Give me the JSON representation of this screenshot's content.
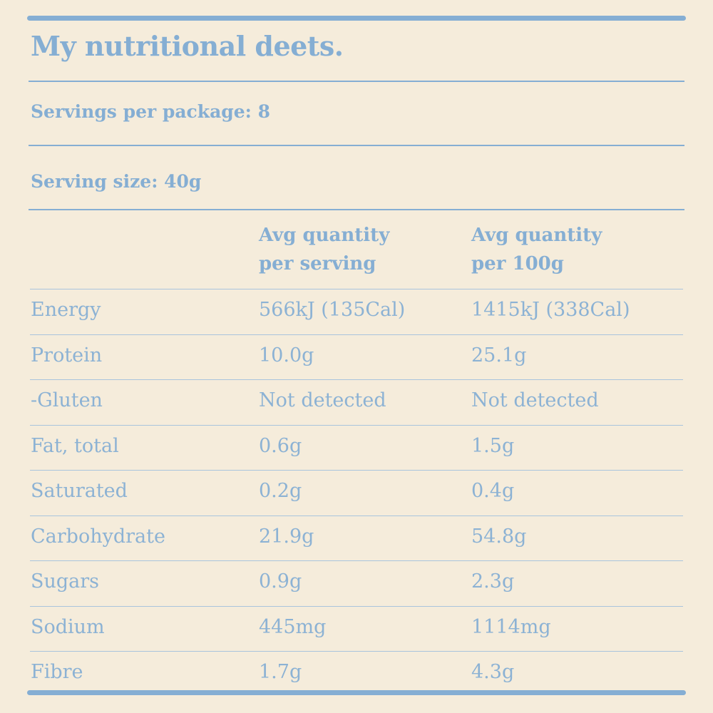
{
  "header": {
    "title": "My nutritional deets."
  },
  "servings_per_package": "Servings per package: 8",
  "serving_size": "Serving size: 40g",
  "table": {
    "columns": [
      "Avg quantity per serving",
      "Avg quantity per 100g"
    ],
    "rows": [
      [
        "Energy",
        "566kJ (135Cal)",
        "1415kJ (338Cal)"
      ],
      [
        "Protein",
        "10.0g",
        "25.1g"
      ],
      [
        "-Gluten",
        "Not detected",
        "Not detected"
      ],
      [
        "Fat, total",
        "0.6g",
        "1.5g"
      ],
      [
        "Saturated",
        "0.2g",
        "0.4g"
      ],
      [
        "Carbohydrate",
        "21.9g",
        "54.8g"
      ],
      [
        "Sugars",
        "0.9g",
        "2.3g"
      ],
      [
        "Sodium",
        "445mg",
        "1114mg"
      ],
      [
        "Fibre",
        "1.7g",
        "4.3g"
      ]
    ]
  }
}
